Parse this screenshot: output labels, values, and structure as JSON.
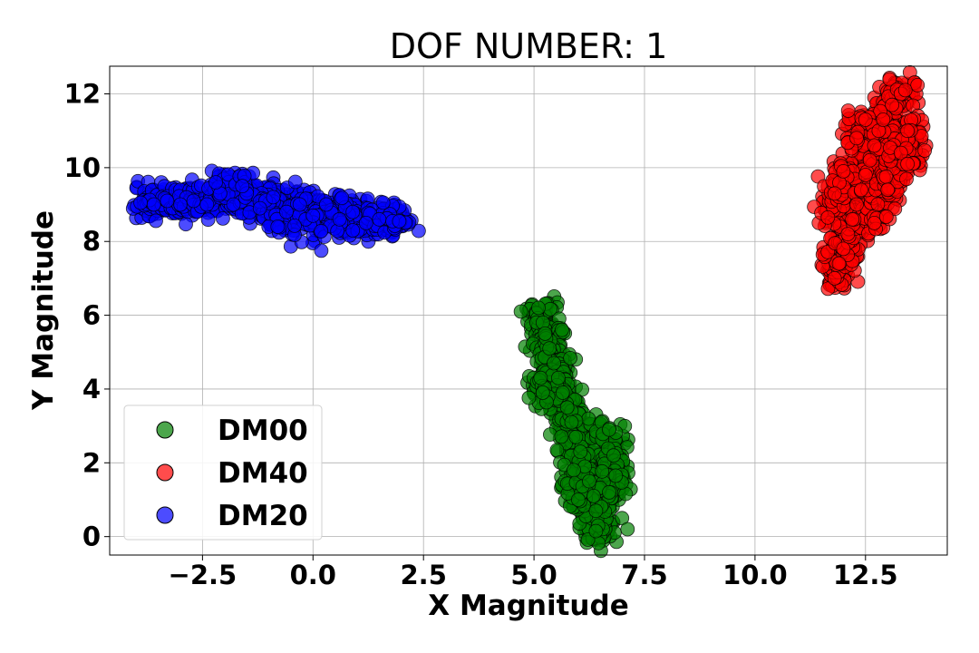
{
  "chart_data": {
    "type": "scatter",
    "title": "DOF NUMBER: 1",
    "xlabel": "X Magnitude",
    "ylabel": "Y Magnitude",
    "xlim": [
      -4.6,
      14.35
    ],
    "ylim": [
      -0.5,
      12.75
    ],
    "xticks": [
      -2.5,
      0.0,
      2.5,
      5.0,
      7.5,
      10.0,
      12.5
    ],
    "xtick_labels": [
      "−2.5",
      "0.0",
      "2.5",
      "5.0",
      "7.5",
      "10.0",
      "12.5"
    ],
    "yticks": [
      0,
      2,
      4,
      6,
      8,
      10,
      12
    ],
    "ytick_labels": [
      "0",
      "2",
      "4",
      "6",
      "8",
      "10",
      "12"
    ],
    "grid": true,
    "legend_position": "lower-left",
    "series": [
      {
        "name": "DM00",
        "color": "#008000",
        "points": [
          [
            5.1,
            6.2
          ],
          [
            5.2,
            5.8
          ],
          [
            5.25,
            5.5
          ],
          [
            5.35,
            5.1
          ],
          [
            5.45,
            4.7
          ],
          [
            5.55,
            4.3
          ],
          [
            5.65,
            3.9
          ],
          [
            5.75,
            3.5
          ],
          [
            5.85,
            3.1
          ],
          [
            5.95,
            2.7
          ],
          [
            6.05,
            2.3
          ],
          [
            6.15,
            1.9
          ],
          [
            6.25,
            1.5
          ],
          [
            6.35,
            1.1
          ],
          [
            6.4,
            0.7
          ],
          [
            6.45,
            0.3
          ],
          [
            6.4,
            0.15
          ],
          [
            5.15,
            4.3
          ],
          [
            5.2,
            3.9
          ],
          [
            6.7,
            2.9
          ],
          [
            6.8,
            2.2
          ],
          [
            6.85,
            1.65
          ],
          [
            6.7,
            1.2
          ],
          [
            6.0,
            1.0
          ],
          [
            5.9,
            1.8
          ]
        ]
      },
      {
        "name": "DM40",
        "color": "#ff0000",
        "points": [
          [
            11.8,
            7.0
          ],
          [
            11.9,
            7.4
          ],
          [
            12.0,
            7.8
          ],
          [
            12.1,
            8.2
          ],
          [
            12.2,
            8.6
          ],
          [
            12.3,
            9.0
          ],
          [
            12.4,
            9.4
          ],
          [
            12.5,
            9.8
          ],
          [
            12.6,
            10.2
          ],
          [
            12.7,
            10.6
          ],
          [
            12.8,
            11.0
          ],
          [
            12.9,
            11.3
          ],
          [
            13.1,
            11.7
          ],
          [
            13.3,
            12.0
          ],
          [
            13.4,
            12.1
          ],
          [
            11.65,
            8.65
          ],
          [
            11.8,
            9.3
          ],
          [
            12.0,
            9.9
          ],
          [
            12.7,
            8.5
          ],
          [
            13.0,
            9.4
          ],
          [
            13.3,
            10.4
          ],
          [
            13.45,
            11.0
          ],
          [
            13.45,
            10.1
          ],
          [
            12.5,
            11.3
          ],
          [
            12.3,
            10.8
          ]
        ]
      },
      {
        "name": "DM20",
        "color": "#0000ff",
        "points": [
          [
            -3.9,
            9.05
          ],
          [
            -3.6,
            9.0
          ],
          [
            -3.3,
            9.1
          ],
          [
            -3.0,
            9.0
          ],
          [
            -2.7,
            9.1
          ],
          [
            -2.4,
            9.0
          ],
          [
            -2.1,
            9.3
          ],
          [
            -1.8,
            9.0
          ],
          [
            -1.5,
            9.3
          ],
          [
            -1.2,
            8.9
          ],
          [
            -0.9,
            9.2
          ],
          [
            -0.6,
            8.8
          ],
          [
            -0.3,
            9.0
          ],
          [
            0.0,
            8.7
          ],
          [
            0.3,
            9.0
          ],
          [
            0.6,
            8.6
          ],
          [
            0.9,
            8.8
          ],
          [
            1.2,
            8.5
          ],
          [
            1.5,
            8.6
          ],
          [
            1.8,
            8.55
          ],
          [
            1.95,
            8.55
          ],
          [
            -2.2,
            9.6
          ],
          [
            -1.6,
            9.5
          ],
          [
            -0.8,
            8.4
          ],
          [
            0.9,
            8.3
          ]
        ]
      }
    ]
  }
}
